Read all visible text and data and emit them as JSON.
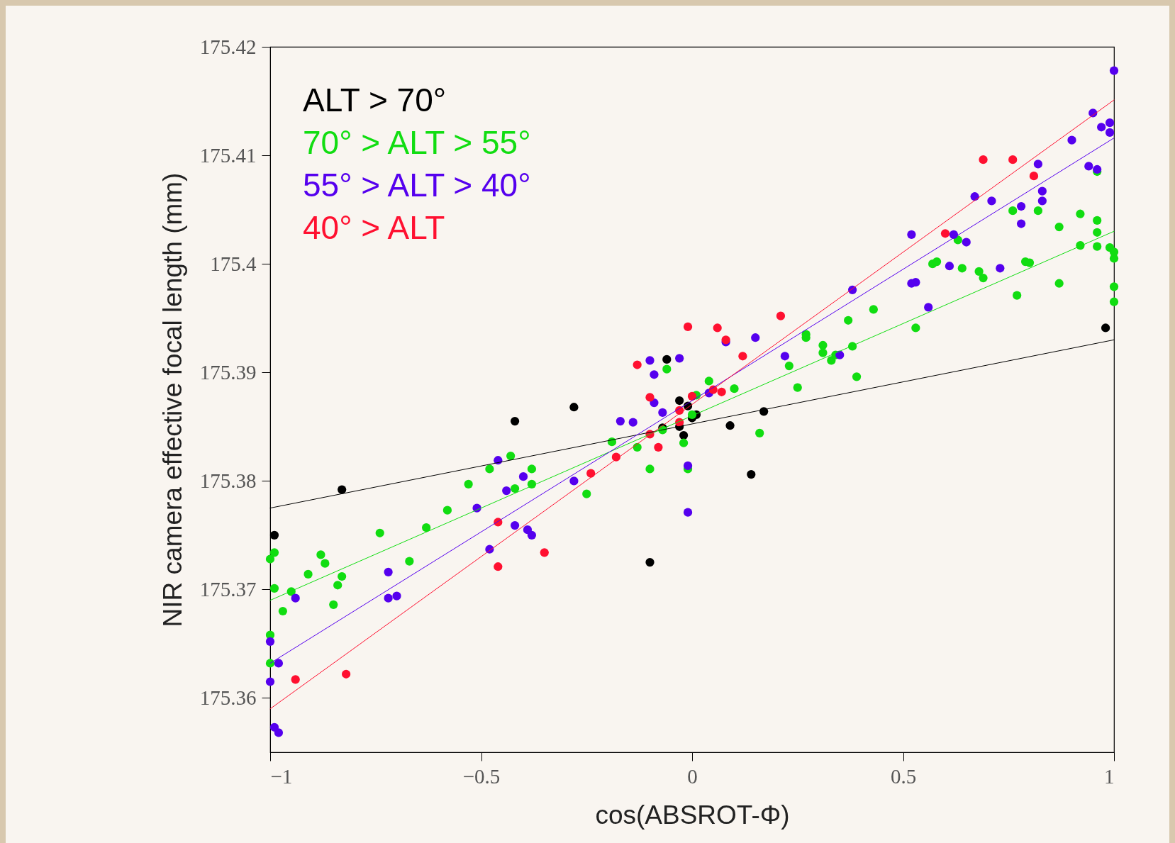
{
  "chart_data": {
    "type": "scatter",
    "xlabel": "cos(ABSROT-Φ)",
    "ylabel": "NIR camera effective focal length (mm)",
    "xlim": [
      -1,
      1
    ],
    "xticks": [
      -1,
      -0.5,
      0,
      0.5,
      1
    ],
    "ylim": [
      175.355,
      175.42
    ],
    "yticks": [
      175.36,
      175.37,
      175.38,
      175.39,
      175.4,
      175.41,
      175.42
    ],
    "grid": false,
    "legend": "top left",
    "series": [
      {
        "name": "ALT > 70°",
        "color": "#000000",
        "marker": "circle",
        "x": [
          -0.99,
          -0.83,
          -0.42,
          -0.28,
          -0.06,
          -0.1,
          -0.03,
          -0.01,
          -0.03,
          -0.07,
          -0.02,
          0.0,
          0.01,
          0.09,
          0.14,
          0.17,
          0.98
        ],
        "values": [
          175.375,
          175.3792,
          175.3855,
          175.3868,
          175.3912,
          175.3725,
          175.3874,
          175.3869,
          175.385,
          175.3849,
          175.3842,
          175.3858,
          175.3861,
          175.3851,
          175.3806,
          175.3864,
          175.3941
        ]
      },
      {
        "name": "70° > ALT > 55°",
        "color": "#11dd11",
        "marker": "circle",
        "x": [
          -1.0,
          -1.0,
          -1.0,
          -0.99,
          -0.99,
          -0.97,
          -0.95,
          -0.91,
          -0.88,
          -0.87,
          -0.85,
          -0.84,
          -0.83,
          -0.74,
          -0.67,
          -0.63,
          -0.58,
          -0.53,
          -0.48,
          -0.43,
          -0.42,
          -0.38,
          -0.38,
          -0.25,
          -0.19,
          -0.13,
          -0.1,
          -0.07,
          -0.06,
          -0.02,
          -0.01,
          0.0,
          0.01,
          0.04,
          0.1,
          0.16,
          0.23,
          0.25,
          0.27,
          0.27,
          0.31,
          0.31,
          0.33,
          0.34,
          0.37,
          0.38,
          0.39,
          0.43,
          0.53,
          0.57,
          0.58,
          0.63,
          0.64,
          0.69,
          0.68,
          0.76,
          0.77,
          0.79,
          0.8,
          0.82,
          0.87,
          0.87,
          0.92,
          0.92,
          0.96,
          0.96,
          0.96,
          0.96,
          0.99,
          1.0,
          1.0,
          1.0,
          1.0
        ],
        "values": [
          175.3658,
          175.3632,
          175.3728,
          175.3734,
          175.3701,
          175.368,
          175.3698,
          175.3714,
          175.3732,
          175.3724,
          175.3686,
          175.3704,
          175.3712,
          175.3752,
          175.3726,
          175.3757,
          175.3773,
          175.3797,
          175.3811,
          175.3823,
          175.3793,
          175.3811,
          175.3797,
          175.3788,
          175.3836,
          175.3831,
          175.3811,
          175.3847,
          175.3903,
          175.3835,
          175.3811,
          175.3861,
          175.3879,
          175.3892,
          175.3885,
          175.3844,
          175.3906,
          175.3886,
          175.3935,
          175.3932,
          175.3925,
          175.3918,
          175.3911,
          175.3916,
          175.3948,
          175.3924,
          175.3896,
          175.3958,
          175.3941,
          175.4,
          175.4002,
          175.4022,
          175.3996,
          175.3987,
          175.3993,
          175.4049,
          175.3971,
          175.4002,
          175.4001,
          175.4049,
          175.4034,
          175.3982,
          175.4046,
          175.4017,
          175.4085,
          175.404,
          175.4029,
          175.4016,
          175.4015,
          175.3979,
          175.3965,
          175.4005,
          175.4011
        ]
      },
      {
        "name": "55° > ALT > 40°",
        "color": "#5500ee",
        "marker": "circle",
        "x": [
          -1.0,
          -1.0,
          -0.99,
          -0.98,
          -0.98,
          -0.94,
          -0.72,
          -0.72,
          -0.7,
          -0.51,
          -0.48,
          -0.46,
          -0.44,
          -0.42,
          -0.4,
          -0.39,
          -0.38,
          -0.28,
          -0.17,
          -0.14,
          -0.1,
          -0.09,
          -0.09,
          -0.07,
          -0.03,
          -0.01,
          -0.01,
          0.04,
          0.08,
          0.15,
          0.22,
          0.35,
          0.38,
          0.52,
          0.52,
          0.53,
          0.56,
          0.62,
          0.61,
          0.65,
          0.67,
          0.71,
          0.73,
          0.78,
          0.78,
          0.82,
          0.83,
          0.83,
          0.9,
          0.94,
          0.95,
          0.96,
          0.97,
          0.99,
          0.99,
          1.0
        ],
        "values": [
          175.3615,
          175.3652,
          175.3573,
          175.3568,
          175.3632,
          175.3692,
          175.3716,
          175.3692,
          175.3694,
          175.3775,
          175.3737,
          175.3819,
          175.3791,
          175.3759,
          175.3804,
          175.3755,
          175.375,
          175.38,
          175.3855,
          175.3854,
          175.3911,
          175.3898,
          175.3872,
          175.3863,
          175.3913,
          175.3814,
          175.3771,
          175.3881,
          175.3928,
          175.3932,
          175.3915,
          175.3916,
          175.3976,
          175.4027,
          175.3982,
          175.3983,
          175.396,
          175.4027,
          175.3998,
          175.402,
          175.4062,
          175.4058,
          175.3996,
          175.4053,
          175.4037,
          175.4092,
          175.4058,
          175.4067,
          175.4114,
          175.409,
          175.4139,
          175.4087,
          175.4126,
          175.413,
          175.4121,
          175.4178
        ]
      },
      {
        "name": "40° > ALT",
        "color": "#ff1030",
        "marker": "circle",
        "x": [
          -0.94,
          -0.82,
          -0.46,
          -0.46,
          -0.35,
          -0.24,
          -0.18,
          -0.13,
          -0.1,
          -0.1,
          -0.08,
          -0.03,
          -0.03,
          -0.01,
          0.0,
          0.05,
          0.06,
          0.07,
          0.08,
          0.12,
          0.21,
          0.6,
          0.69,
          0.76,
          0.81
        ],
        "values": [
          175.3617,
          175.3622,
          175.3762,
          175.3721,
          175.3734,
          175.3807,
          175.3822,
          175.3907,
          175.3877,
          175.3843,
          175.3831,
          175.3865,
          175.3854,
          175.3942,
          175.3878,
          175.3884,
          175.3941,
          175.3882,
          175.393,
          175.3915,
          175.3952,
          175.4028,
          175.4096,
          175.4096,
          175.4081
        ]
      },
      {
        "type": "line",
        "color": "#000000",
        "marker": "none",
        "x": [
          -1,
          1
        ],
        "values": [
          175.3775,
          175.393
        ]
      },
      {
        "type": "line",
        "color": "#11dd11",
        "marker": "none",
        "x": [
          -1,
          1
        ],
        "values": [
          175.369,
          175.403
        ]
      },
      {
        "type": "line",
        "color": "#5500ee",
        "marker": "none",
        "x": [
          -1,
          1
        ],
        "values": [
          175.3632,
          175.4116
        ]
      },
      {
        "type": "line",
        "color": "#ff1030",
        "marker": "none",
        "x": [
          -1,
          1
        ],
        "values": [
          175.359,
          175.4151
        ]
      }
    ]
  }
}
